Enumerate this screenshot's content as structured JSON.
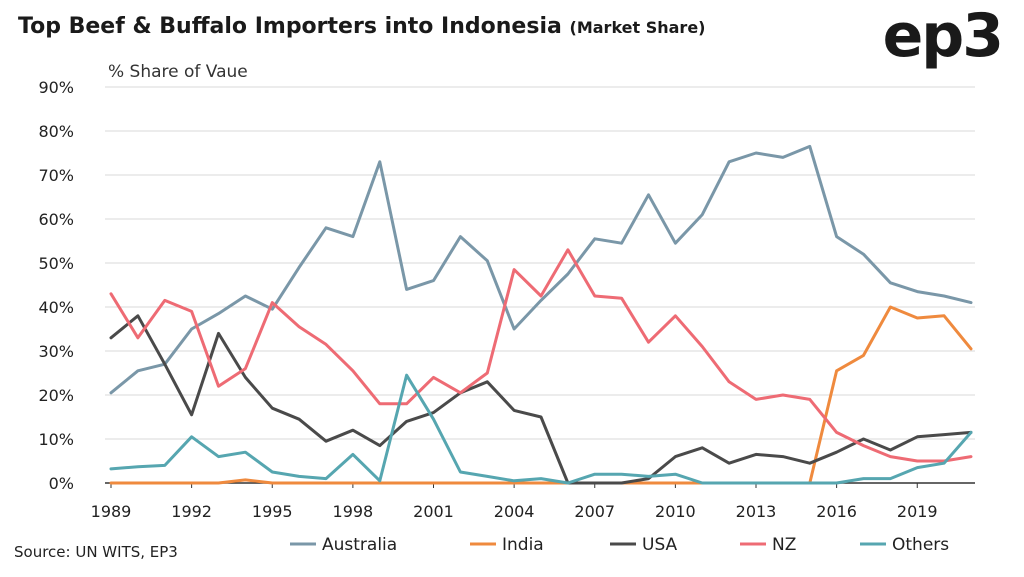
{
  "header": {
    "title": "Top Beef & Buffalo Importers into Indonesia",
    "title_sub": "(Market Share)",
    "logo": "ep3"
  },
  "footer": {
    "source": "Source: UN WITS, EP3"
  },
  "chart_data": {
    "type": "line",
    "ylabel": "% Share of Vaue",
    "x": [
      1989,
      1990,
      1991,
      1992,
      1993,
      1994,
      1995,
      1996,
      1997,
      1998,
      1999,
      2000,
      2001,
      2002,
      2003,
      2004,
      2005,
      2006,
      2007,
      2008,
      2009,
      2010,
      2011,
      2012,
      2013,
      2014,
      2015,
      2016,
      2017,
      2018,
      2019,
      2020,
      2021
    ],
    "xticks": [
      1989,
      1992,
      1995,
      1998,
      2001,
      2004,
      2007,
      2010,
      2013,
      2016,
      2019
    ],
    "xlim": [
      1989,
      2021
    ],
    "ylim": [
      0,
      90
    ],
    "yticks": [
      0,
      10,
      20,
      30,
      40,
      50,
      60,
      70,
      80,
      90
    ],
    "ytick_labels": [
      "0%",
      "10%",
      "20%",
      "30%",
      "40%",
      "50%",
      "60%",
      "70%",
      "80%",
      "90%"
    ],
    "grid": "horizontal",
    "legend_position": "bottom",
    "series": [
      {
        "name": "Australia",
        "color": "#7a97a8",
        "values": [
          20.5,
          25.5,
          27,
          35,
          38.5,
          42.5,
          39.5,
          49,
          58,
          56,
          73,
          44,
          46,
          56,
          50.5,
          35,
          41.5,
          47.5,
          55.5,
          54.5,
          65.5,
          54.5,
          61,
          73,
          75,
          74,
          76.5,
          56,
          52,
          45.5,
          43.5,
          42.5,
          41
        ]
      },
      {
        "name": "India",
        "color": "#ef8a3e",
        "values": [
          0,
          0,
          0,
          0,
          0,
          0.7,
          0,
          0,
          0,
          0,
          0,
          0,
          0,
          0,
          0,
          0,
          0,
          0,
          0,
          0,
          0,
          0,
          0,
          0,
          0,
          0,
          0,
          25.5,
          29,
          40,
          37.5,
          38,
          30.5
        ]
      },
      {
        "name": "USA",
        "color": "#4a4a4a",
        "values": [
          33,
          38,
          27,
          15.5,
          34,
          24,
          17,
          14.5,
          9.5,
          12,
          8.5,
          14,
          16,
          20.5,
          23,
          16.5,
          15,
          0,
          0,
          0,
          1,
          6,
          8,
          4.5,
          6.5,
          6,
          4.5,
          7,
          10,
          7.5,
          10.5,
          11,
          11.5
        ]
      },
      {
        "name": "NZ",
        "color": "#ee6b74",
        "values": [
          43,
          33,
          41.5,
          39,
          22,
          26,
          41,
          35.5,
          31.5,
          25.5,
          18,
          18,
          24,
          20.5,
          25,
          48.5,
          42.5,
          53,
          42.5,
          42,
          32,
          38,
          31,
          23,
          19,
          20,
          19,
          11.5,
          8.5,
          6,
          5,
          5,
          6
        ]
      },
      {
        "name": "Others",
        "color": "#56a6b0",
        "values": [
          3.2,
          3.7,
          4,
          10.5,
          6,
          7,
          2.5,
          1.5,
          1,
          6.5,
          0.5,
          24.5,
          14.5,
          2.5,
          1.5,
          0.5,
          1,
          0,
          2,
          2,
          1.5,
          2,
          0,
          0,
          0,
          0,
          0,
          0,
          1,
          1,
          3.5,
          4.5,
          11.5
        ]
      }
    ]
  }
}
